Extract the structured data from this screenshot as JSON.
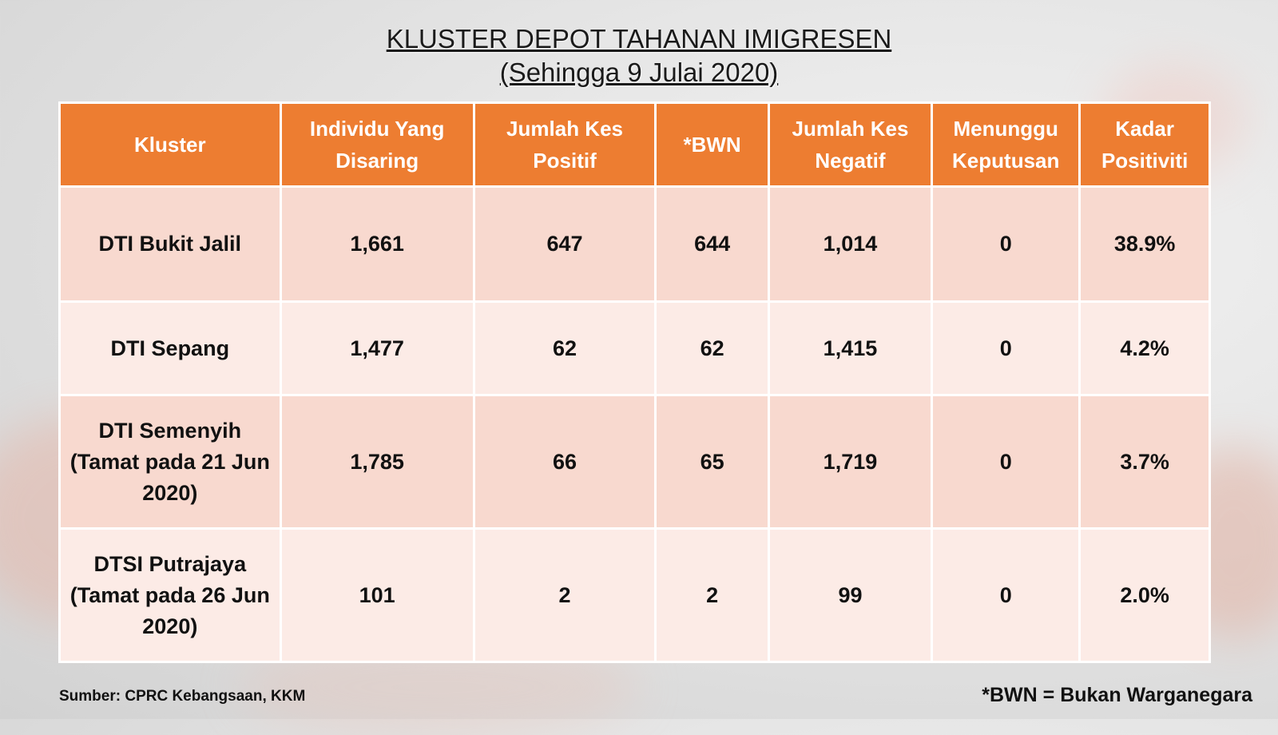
{
  "title": {
    "line1": "KLUSTER DEPOT TAHANAN IMIGRESEN",
    "line2": "(Sehingga 9 Julai 2020)"
  },
  "table": {
    "headers": [
      "Kluster",
      "Individu Yang Disaring",
      "Jumlah Kes Positif",
      "*BWN",
      "Jumlah Kes Negatif",
      "Menunggu Keputusan",
      "Kadar Positiviti"
    ],
    "rows": [
      {
        "kluster": "DTI Bukit Jalil",
        "disaring": "1,661",
        "positif": "647",
        "bwn": "644",
        "negatif": "1,014",
        "menunggu": "0",
        "kadar": "38.9%"
      },
      {
        "kluster": "DTI Sepang",
        "disaring": "1,477",
        "positif": "62",
        "bwn": "62",
        "negatif": "1,415",
        "menunggu": "0",
        "kadar": "4.2%"
      },
      {
        "kluster": "DTI Semenyih (Tamat pada 21 Jun 2020)",
        "disaring": "1,785",
        "positif": "66",
        "bwn": "65",
        "negatif": "1,719",
        "menunggu": "0",
        "kadar": "3.7%"
      },
      {
        "kluster": "DTSI Putrajaya (Tamat pada 26 Jun 2020)",
        "disaring": "101",
        "positif": "2",
        "bwn": "2",
        "negatif": "99",
        "menunggu": "0",
        "kadar": "2.0%"
      }
    ]
  },
  "footer": {
    "source": "Sumber: CPRC Kebangsaan, KKM",
    "footnote": "*BWN = Bukan Warganegara"
  },
  "colors": {
    "header_bg": "#ed7d31",
    "row_dark": "#f8d9cf",
    "row_light": "#fcebe6"
  }
}
